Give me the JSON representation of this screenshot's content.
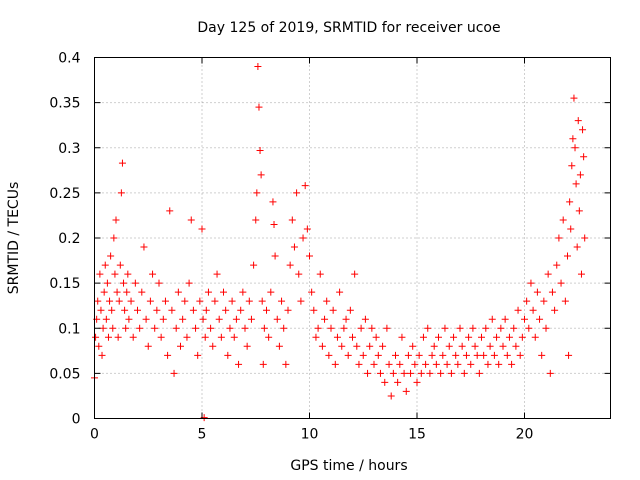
{
  "chart_data": {
    "type": "scatter",
    "title": "Day 125 of 2019, SRMTID for receiver ucoe",
    "xlabel": "GPS time / hours",
    "ylabel": "SRMTID / TECUs",
    "xlim": [
      0,
      24
    ],
    "ylim": [
      0,
      0.4
    ],
    "xticks": [
      0,
      5,
      10,
      15,
      20
    ],
    "xtick_labels": [
      "0",
      "5",
      "10",
      "15",
      "20"
    ],
    "yticks": [
      0,
      0.05,
      0.1,
      0.15,
      0.2,
      0.25,
      0.3,
      0.35,
      0.4
    ],
    "ytick_labels": [
      "0",
      "0.05",
      "0.1",
      "0.15",
      "0.2",
      "0.25",
      "0.3",
      "0.35",
      "0.4"
    ],
    "grid": true,
    "marker": "+",
    "color": "#ff0000",
    "series": [
      {
        "name": "SRMTID",
        "points": [
          [
            0.0,
            0.045
          ],
          [
            0.05,
            0.09
          ],
          [
            0.1,
            0.11
          ],
          [
            0.15,
            0.13
          ],
          [
            0.2,
            0.08
          ],
          [
            0.25,
            0.16
          ],
          [
            0.3,
            0.12
          ],
          [
            0.35,
            0.07
          ],
          [
            0.4,
            0.1
          ],
          [
            0.45,
            0.14
          ],
          [
            0.5,
            0.17
          ],
          [
            0.55,
            0.11
          ],
          [
            0.6,
            0.15
          ],
          [
            0.65,
            0.09
          ],
          [
            0.7,
            0.13
          ],
          [
            0.75,
            0.18
          ],
          [
            0.8,
            0.12
          ],
          [
            0.85,
            0.1
          ],
          [
            0.9,
            0.2
          ],
          [
            0.95,
            0.16
          ],
          [
            1.0,
            0.22
          ],
          [
            1.05,
            0.14
          ],
          [
            1.1,
            0.09
          ],
          [
            1.15,
            0.13
          ],
          [
            1.2,
            0.17
          ],
          [
            1.25,
            0.25
          ],
          [
            1.3,
            0.283
          ],
          [
            1.35,
            0.15
          ],
          [
            1.4,
            0.12
          ],
          [
            1.45,
            0.1
          ],
          [
            1.5,
            0.14
          ],
          [
            1.55,
            0.16
          ],
          [
            1.6,
            0.11
          ],
          [
            1.7,
            0.13
          ],
          [
            1.8,
            0.09
          ],
          [
            1.9,
            0.15
          ],
          [
            2.0,
            0.12
          ],
          [
            2.1,
            0.1
          ],
          [
            2.2,
            0.14
          ],
          [
            2.3,
            0.19
          ],
          [
            2.4,
            0.11
          ],
          [
            2.5,
            0.08
          ],
          [
            2.6,
            0.13
          ],
          [
            2.7,
            0.16
          ],
          [
            2.8,
            0.1
          ],
          [
            2.9,
            0.12
          ],
          [
            3.0,
            0.15
          ],
          [
            3.1,
            0.09
          ],
          [
            3.2,
            0.11
          ],
          [
            3.3,
            0.13
          ],
          [
            3.4,
            0.07
          ],
          [
            3.5,
            0.23
          ],
          [
            3.6,
            0.12
          ],
          [
            3.7,
            0.05
          ],
          [
            3.8,
            0.1
          ],
          [
            3.9,
            0.14
          ],
          [
            4.0,
            0.08
          ],
          [
            4.1,
            0.11
          ],
          [
            4.2,
            0.13
          ],
          [
            4.3,
            0.09
          ],
          [
            4.4,
            0.15
          ],
          [
            4.5,
            0.22
          ],
          [
            4.6,
            0.12
          ],
          [
            4.7,
            0.1
          ],
          [
            4.8,
            0.07
          ],
          [
            4.9,
            0.13
          ],
          [
            5.0,
            0.21
          ],
          [
            5.05,
            0.11
          ],
          [
            5.1,
            0.001
          ],
          [
            5.15,
            0.09
          ],
          [
            5.2,
            0.12
          ],
          [
            5.3,
            0.14
          ],
          [
            5.4,
            0.1
          ],
          [
            5.5,
            0.08
          ],
          [
            5.6,
            0.13
          ],
          [
            5.7,
            0.16
          ],
          [
            5.8,
            0.11
          ],
          [
            5.9,
            0.09
          ],
          [
            6.0,
            0.14
          ],
          [
            6.1,
            0.12
          ],
          [
            6.2,
            0.07
          ],
          [
            6.3,
            0.1
          ],
          [
            6.4,
            0.13
          ],
          [
            6.5,
            0.09
          ],
          [
            6.6,
            0.11
          ],
          [
            6.7,
            0.06
          ],
          [
            6.8,
            0.12
          ],
          [
            6.9,
            0.14
          ],
          [
            7.0,
            0.1
          ],
          [
            7.1,
            0.08
          ],
          [
            7.2,
            0.13
          ],
          [
            7.3,
            0.11
          ],
          [
            7.4,
            0.17
          ],
          [
            7.5,
            0.22
          ],
          [
            7.55,
            0.25
          ],
          [
            7.6,
            0.39
          ],
          [
            7.65,
            0.345
          ],
          [
            7.7,
            0.297
          ],
          [
            7.75,
            0.27
          ],
          [
            7.8,
            0.13
          ],
          [
            7.85,
            0.06
          ],
          [
            7.9,
            0.1
          ],
          [
            8.0,
            0.12
          ],
          [
            8.1,
            0.09
          ],
          [
            8.2,
            0.14
          ],
          [
            8.3,
            0.24
          ],
          [
            8.35,
            0.215
          ],
          [
            8.4,
            0.18
          ],
          [
            8.5,
            0.11
          ],
          [
            8.6,
            0.08
          ],
          [
            8.7,
            0.13
          ],
          [
            8.8,
            0.1
          ],
          [
            8.9,
            0.06
          ],
          [
            9.0,
            0.12
          ],
          [
            9.1,
            0.17
          ],
          [
            9.2,
            0.22
          ],
          [
            9.3,
            0.19
          ],
          [
            9.4,
            0.25
          ],
          [
            9.5,
            0.16
          ],
          [
            9.6,
            0.13
          ],
          [
            9.7,
            0.2
          ],
          [
            9.8,
            0.258
          ],
          [
            9.9,
            0.21
          ],
          [
            10.0,
            0.18
          ],
          [
            10.1,
            0.14
          ],
          [
            10.2,
            0.12
          ],
          [
            10.3,
            0.09
          ],
          [
            10.4,
            0.1
          ],
          [
            10.5,
            0.16
          ],
          [
            10.6,
            0.08
          ],
          [
            10.7,
            0.11
          ],
          [
            10.8,
            0.13
          ],
          [
            10.9,
            0.07
          ],
          [
            11.0,
            0.1
          ],
          [
            11.1,
            0.12
          ],
          [
            11.2,
            0.06
          ],
          [
            11.3,
            0.09
          ],
          [
            11.4,
            0.14
          ],
          [
            11.5,
            0.08
          ],
          [
            11.6,
            0.1
          ],
          [
            11.7,
            0.11
          ],
          [
            11.8,
            0.07
          ],
          [
            11.9,
            0.12
          ],
          [
            12.0,
            0.09
          ],
          [
            12.1,
            0.16
          ],
          [
            12.2,
            0.08
          ],
          [
            12.3,
            0.06
          ],
          [
            12.4,
            0.1
          ],
          [
            12.5,
            0.07
          ],
          [
            12.6,
            0.11
          ],
          [
            12.7,
            0.05
          ],
          [
            12.8,
            0.08
          ],
          [
            12.9,
            0.1
          ],
          [
            13.0,
            0.06
          ],
          [
            13.1,
            0.09
          ],
          [
            13.2,
            0.07
          ],
          [
            13.3,
            0.05
          ],
          [
            13.4,
            0.08
          ],
          [
            13.5,
            0.04
          ],
          [
            13.6,
            0.1
          ],
          [
            13.7,
            0.06
          ],
          [
            13.8,
            0.025
          ],
          [
            13.9,
            0.05
          ],
          [
            14.0,
            0.07
          ],
          [
            14.1,
            0.04
          ],
          [
            14.2,
            0.06
          ],
          [
            14.3,
            0.09
          ],
          [
            14.4,
            0.05
          ],
          [
            14.5,
            0.03
          ],
          [
            14.6,
            0.07
          ],
          [
            14.7,
            0.05
          ],
          [
            14.8,
            0.08
          ],
          [
            14.9,
            0.06
          ],
          [
            15.0,
            0.04
          ],
          [
            15.1,
            0.07
          ],
          [
            15.2,
            0.05
          ],
          [
            15.3,
            0.09
          ],
          [
            15.4,
            0.06
          ],
          [
            15.5,
            0.1
          ],
          [
            15.6,
            0.05
          ],
          [
            15.7,
            0.07
          ],
          [
            15.8,
            0.08
          ],
          [
            15.9,
            0.06
          ],
          [
            16.0,
            0.09
          ],
          [
            16.1,
            0.05
          ],
          [
            16.2,
            0.07
          ],
          [
            16.3,
            0.1
          ],
          [
            16.4,
            0.06
          ],
          [
            16.5,
            0.08
          ],
          [
            16.6,
            0.05
          ],
          [
            16.7,
            0.09
          ],
          [
            16.8,
            0.07
          ],
          [
            16.9,
            0.06
          ],
          [
            17.0,
            0.1
          ],
          [
            17.1,
            0.08
          ],
          [
            17.2,
            0.05
          ],
          [
            17.3,
            0.07
          ],
          [
            17.4,
            0.09
          ],
          [
            17.5,
            0.06
          ],
          [
            17.6,
            0.1
          ],
          [
            17.7,
            0.08
          ],
          [
            17.8,
            0.07
          ],
          [
            17.9,
            0.05
          ],
          [
            18.0,
            0.09
          ],
          [
            18.1,
            0.07
          ],
          [
            18.2,
            0.1
          ],
          [
            18.3,
            0.06
          ],
          [
            18.4,
            0.08
          ],
          [
            18.5,
            0.11
          ],
          [
            18.6,
            0.07
          ],
          [
            18.7,
            0.09
          ],
          [
            18.8,
            0.06
          ],
          [
            18.9,
            0.1
          ],
          [
            19.0,
            0.08
          ],
          [
            19.1,
            0.11
          ],
          [
            19.2,
            0.07
          ],
          [
            19.3,
            0.09
          ],
          [
            19.4,
            0.06
          ],
          [
            19.5,
            0.1
          ],
          [
            19.6,
            0.08
          ],
          [
            19.7,
            0.12
          ],
          [
            19.8,
            0.07
          ],
          [
            19.9,
            0.09
          ],
          [
            20.0,
            0.11
          ],
          [
            20.1,
            0.13
          ],
          [
            20.2,
            0.1
          ],
          [
            20.3,
            0.15
          ],
          [
            20.4,
            0.12
          ],
          [
            20.5,
            0.09
          ],
          [
            20.6,
            0.14
          ],
          [
            20.7,
            0.11
          ],
          [
            20.8,
            0.07
          ],
          [
            20.9,
            0.13
          ],
          [
            21.0,
            0.1
          ],
          [
            21.1,
            0.16
          ],
          [
            21.2,
            0.05
          ],
          [
            21.3,
            0.14
          ],
          [
            21.4,
            0.12
          ],
          [
            21.5,
            0.17
          ],
          [
            21.6,
            0.2
          ],
          [
            21.7,
            0.15
          ],
          [
            21.8,
            0.22
          ],
          [
            21.9,
            0.13
          ],
          [
            22.0,
            0.18
          ],
          [
            22.05,
            0.07
          ],
          [
            22.1,
            0.24
          ],
          [
            22.15,
            0.21
          ],
          [
            22.2,
            0.28
          ],
          [
            22.25,
            0.31
          ],
          [
            22.3,
            0.355
          ],
          [
            22.35,
            0.3
          ],
          [
            22.4,
            0.26
          ],
          [
            22.45,
            0.19
          ],
          [
            22.5,
            0.33
          ],
          [
            22.55,
            0.23
          ],
          [
            22.6,
            0.27
          ],
          [
            22.65,
            0.16
          ],
          [
            22.7,
            0.32
          ],
          [
            22.75,
            0.29
          ],
          [
            22.8,
            0.2
          ]
        ]
      }
    ]
  }
}
